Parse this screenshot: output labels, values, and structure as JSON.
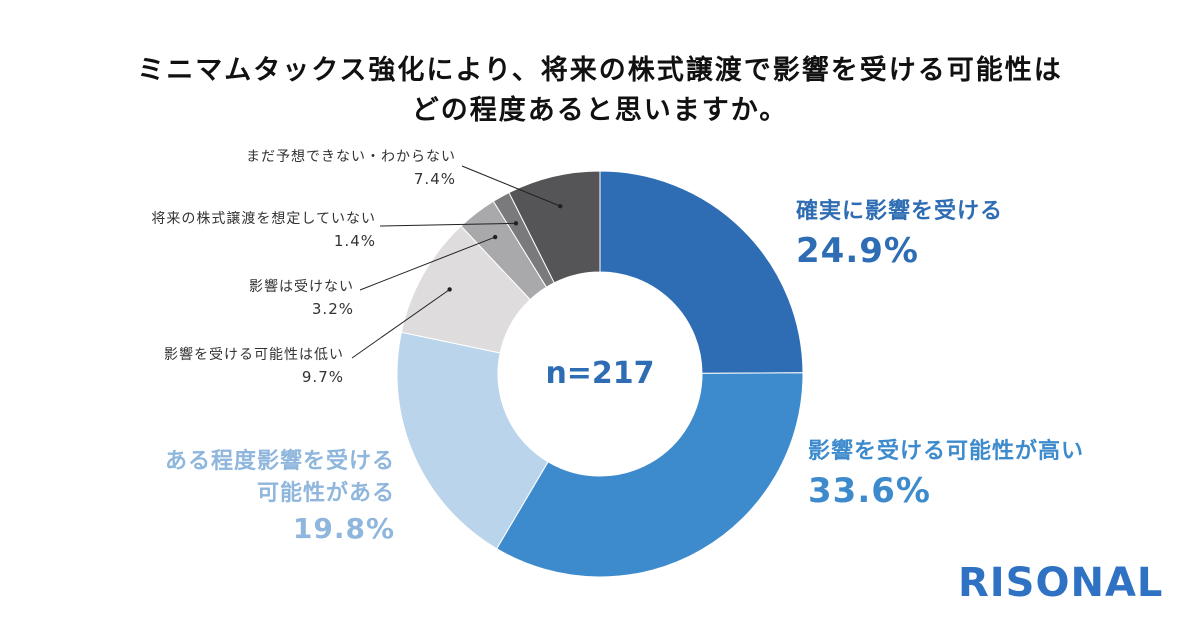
{
  "title_line1": "ミニマムタックス強化により、将来の株式譲渡で影響を受ける可能性は",
  "title_line2": "どの程度あると思いますか。",
  "center_label": "n=217",
  "logo_text": "RISONAL",
  "chart_data": {
    "type": "pie",
    "donut": true,
    "n": 217,
    "categories": [
      "確実に影響を受ける",
      "影響を受ける可能性が高い",
      "ある程度影響を受ける可能性がある",
      "影響を受ける可能性は低い",
      "影響は受けない",
      "将来の株式譲渡を想定していない",
      "まだ予想できない・わからない"
    ],
    "values": [
      24.9,
      33.6,
      19.8,
      9.7,
      3.2,
      1.4,
      7.4
    ],
    "colors": [
      "#2e6db4",
      "#3d8bcd",
      "#b9d4eb",
      "#dfdcdd",
      "#a9a8aa",
      "#7a797b",
      "#555456"
    ],
    "labels": {
      "s0": {
        "name": "確実に影響を受ける",
        "pct": "24.9%"
      },
      "s1": {
        "name": "影響を受ける可能性が高い",
        "pct": "33.6%"
      },
      "s2": {
        "name1": "ある程度影響を受ける",
        "name2": "可能性がある",
        "pct": "19.8%"
      },
      "s3": {
        "name": "影響を受ける可能性は低い",
        "pct": "9.7%"
      },
      "s4": {
        "name": "影響は受けない",
        "pct": "3.2%"
      },
      "s5": {
        "name": "将来の株式譲渡を想定していない",
        "pct": "1.4%"
      },
      "s6": {
        "name": "まだ予想できない・わからない",
        "pct": "7.4%"
      }
    }
  }
}
